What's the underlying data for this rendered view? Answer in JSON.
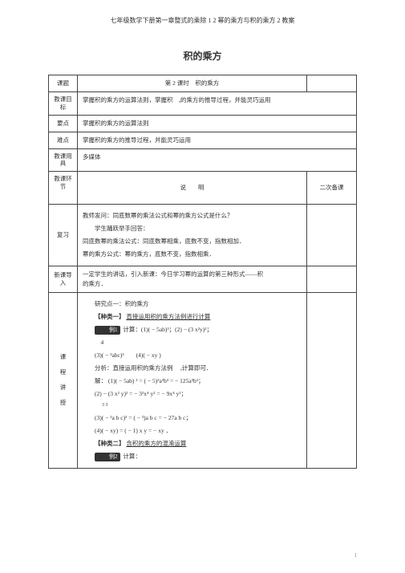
{
  "header": "七年级数学下册第一章整式的乘除 1 2 幂的乘方与积的乘方 2 教案",
  "title": "积的乘方",
  "rows": {
    "r1_label": "课题",
    "r1_content": "第 2 课时　积的乘方",
    "r2_label": "教课目\n标",
    "r2_content": "掌握积的乘方的运算法则，掌握积　ₐ的乘方的推导过程，并能灵巧运用",
    "r3_label": "要点",
    "r3_content": "掌握积的乘方的运算法则",
    "r4_label": "难点",
    "r4_content": "掌握积的乘方的推导过程，并能灵巧运用",
    "r5_label": "教课用\n具",
    "r5_content": "多媒体",
    "r6_label": "教课环\n节",
    "r6_c1": "说　　明",
    "r6_c2": "二次备课",
    "r7_label": "复习",
    "r7_p1": "教师发问：同底数幂的乘法公式和幂的乘方公式是什么？",
    "r7_p2": "学生踊跃举手回答：",
    "r7_p3": "同底数幂的乘法公式：同底数幂相乘，底数不变，指数相加．",
    "r7_p4": "幂的乘方公式：幂的乘方，底数不变，指数相乘．",
    "r8_label": "新课导\n入",
    "r8_content": "一定学生的讲话，引入新课：今日学习幂的运算的第三种形式——积\n的乘方．",
    "r9_label": "课\n程\n讲\n授",
    "r9_p1": "研究点一：积的乘方",
    "r9_p2": "【种类一】",
    "r9_p2b": "直接运用积的乘方法例进行计算",
    "r9_box1": "例1",
    "r9_p3": "计算：(1)( − 5ab)³；(2) − (3 x²y)²；",
    "r9_p4": "4",
    "r9_p5": "(3)( − ³abc)³　　(4)( − xy )",
    "r9_p6": "分析：直接运用积的乘方法例　 ₐ计算即可．",
    "r9_p7": "解： (1)( − 5ab) ³ = ( − 5)³a³b³ = − 125a³b³；",
    "r9_p8": "(2) − (3 x² y)² = − 3²x⁴ y² = − 9x⁴ y²；",
    "r9_p9": "     3      3",
    "r9_p10": "(3)( − ³a b c)³ = ( − ³)a b c = − 27a b c；",
    "r9_p11": "(4)( − xy)   = ( − 1)  x y = − xy ．",
    "r9_p12": "【种类二】",
    "r9_p12b": "含积的乘方的混淆运算",
    "r9_box2": "例2",
    "r9_p13": "计算："
  },
  "pagenum": "1"
}
